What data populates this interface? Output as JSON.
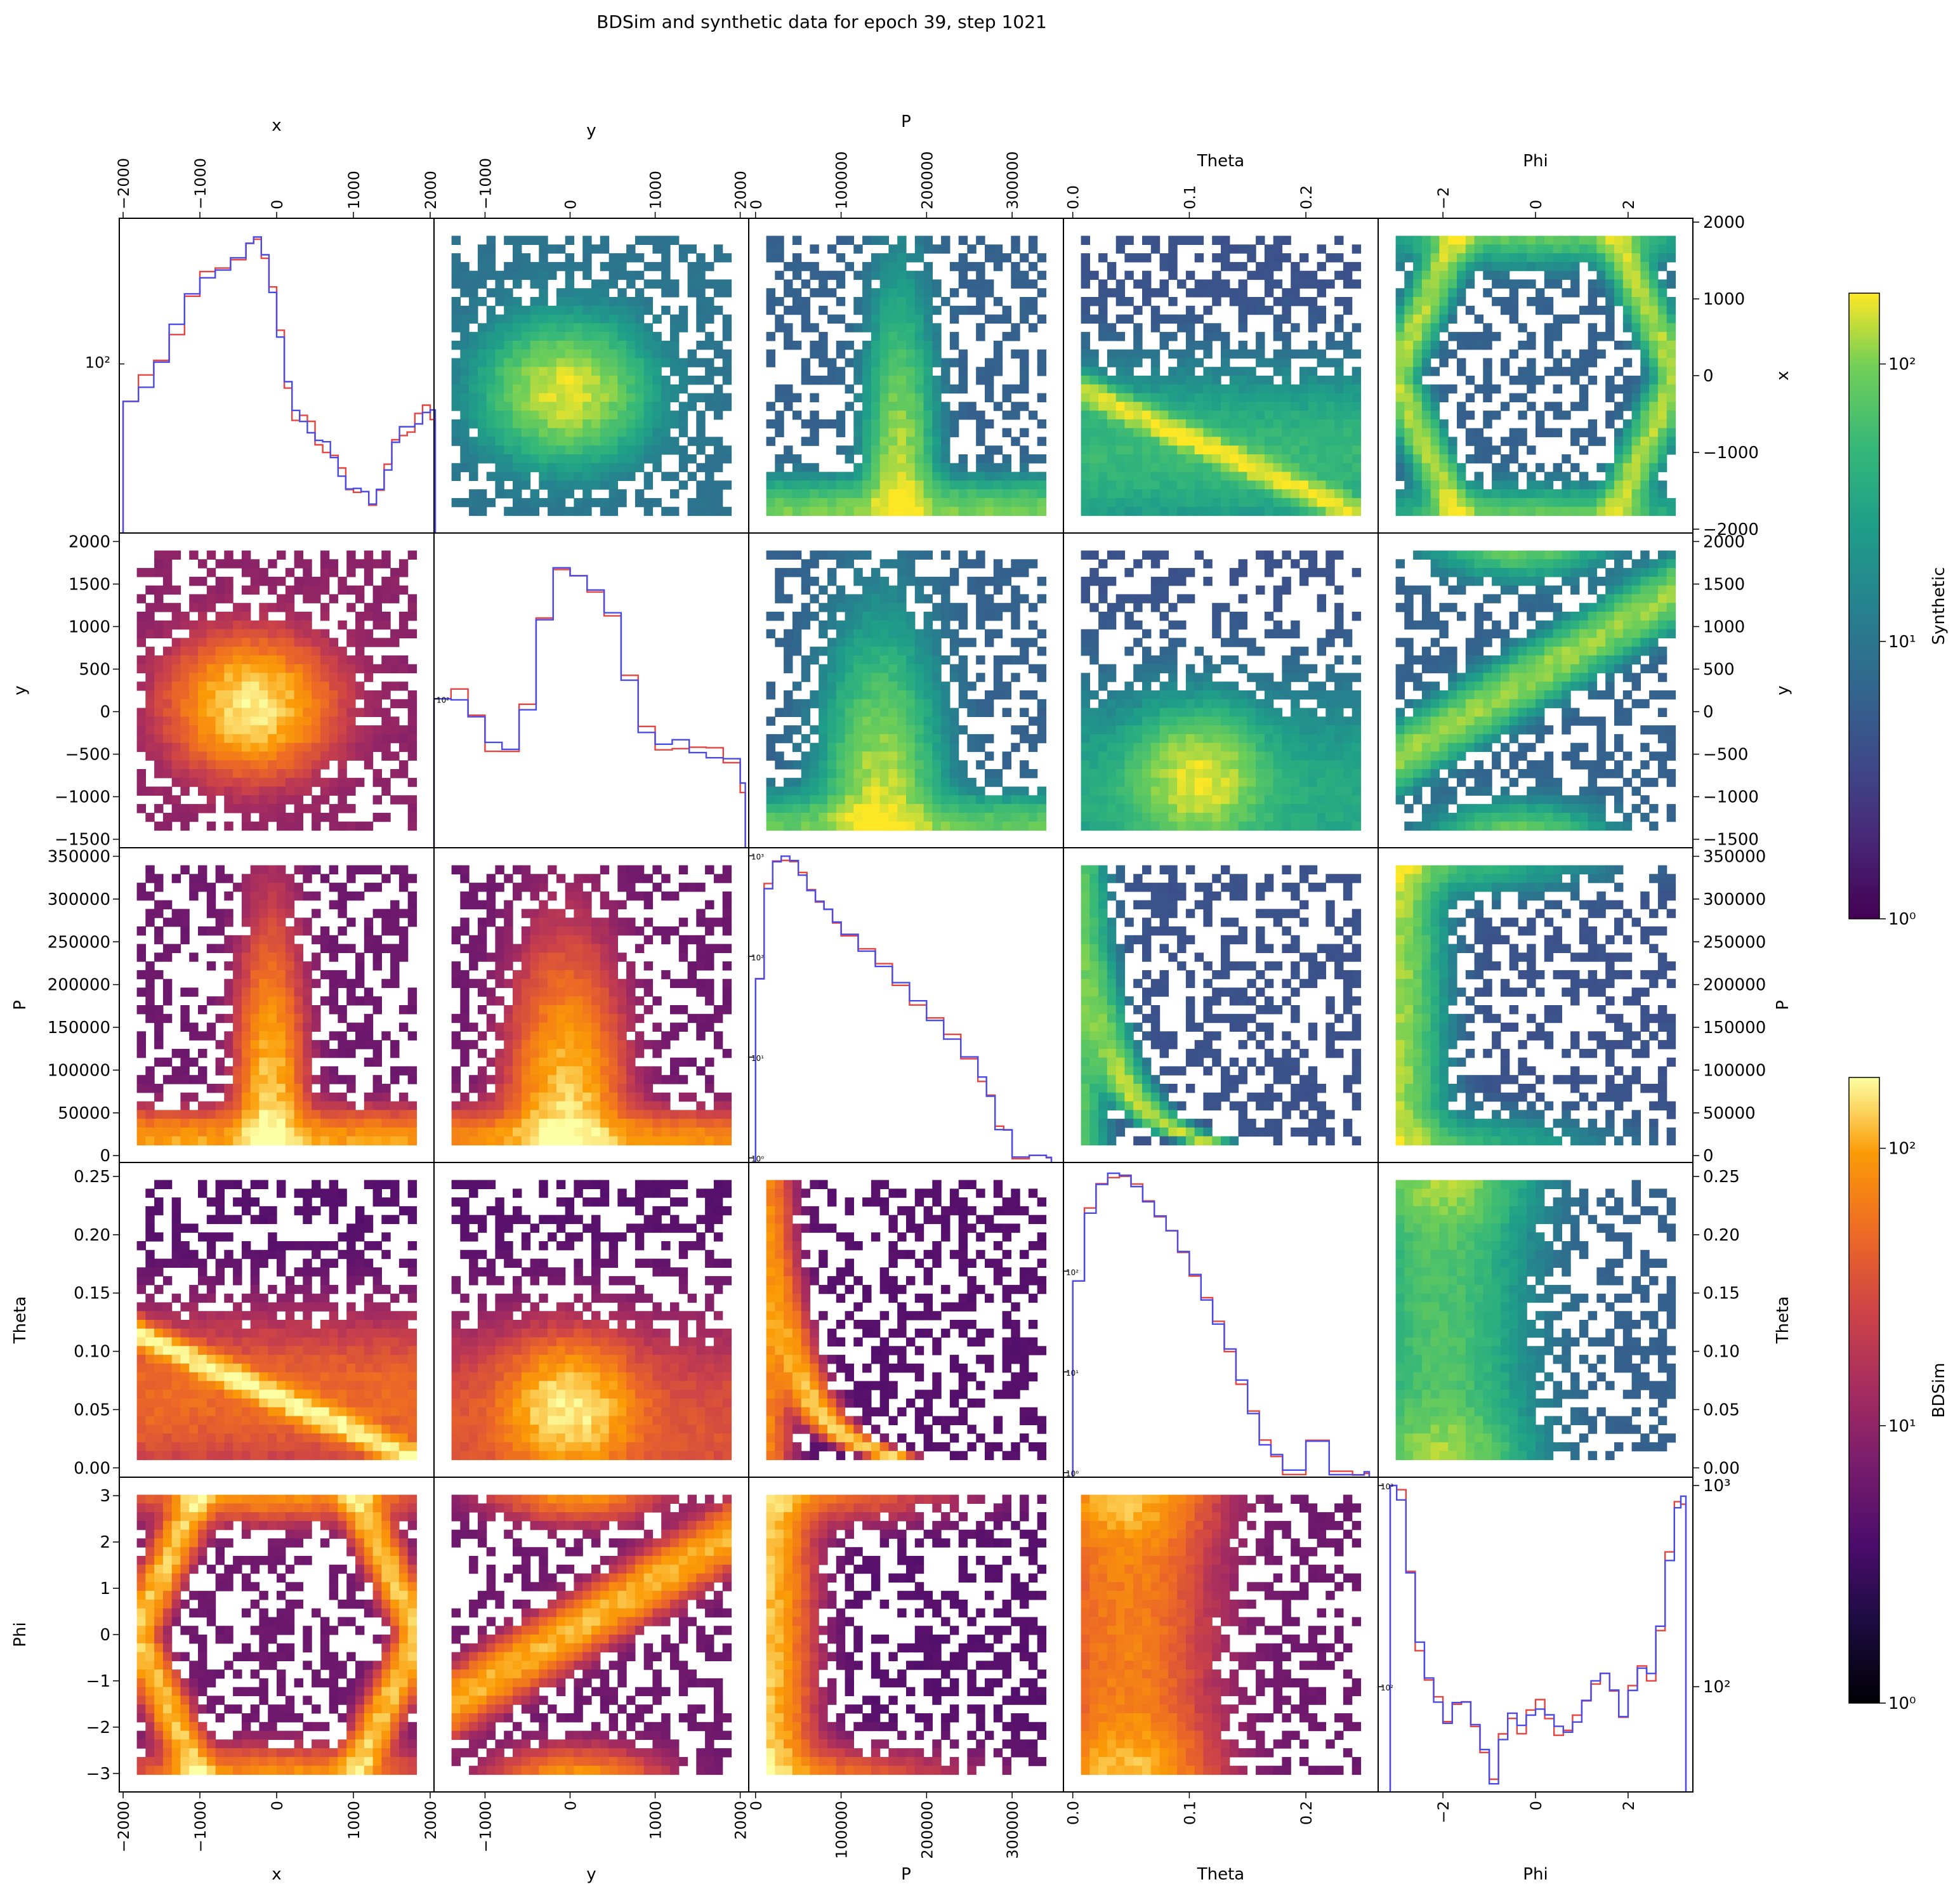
{
  "chart_data": {
    "type": "pairplot",
    "title": "BDSim and synthetic data for epoch 39, step 1021",
    "variables": [
      {
        "name": "x",
        "label": "x",
        "range": [
          -2050,
          2050
        ],
        "ticks": [
          -2000,
          -1000,
          0,
          1000,
          2000
        ],
        "tick_labels": [
          "−2000",
          "−1000",
          "0",
          "1000",
          "2000"
        ]
      },
      {
        "name": "y",
        "label": "y",
        "range": [
          -1600,
          2100
        ],
        "ticks": [
          -1000,
          0,
          1000,
          2000
        ],
        "tick_labels": [
          "−1000",
          "0",
          "1000",
          "2000"
        ],
        "row_ticks": [
          -1500,
          -1000,
          -500,
          0,
          500,
          1000,
          1500,
          2000
        ],
        "row_tick_labels": [
          "−1500",
          "−1000",
          "−500",
          "0",
          "500",
          "1000",
          "1500",
          "2000"
        ]
      },
      {
        "name": "P",
        "label": "P",
        "range": [
          -8000,
          360000
        ],
        "ticks": [
          0,
          100000,
          200000,
          300000
        ],
        "tick_labels": [
          "0",
          "100000",
          "200000",
          "300000"
        ],
        "row_ticks": [
          0,
          50000,
          100000,
          150000,
          200000,
          250000,
          300000,
          350000
        ],
        "row_tick_labels": [
          "0",
          "50000",
          "100000",
          "150000",
          "200000",
          "250000",
          "300000",
          "350000"
        ]
      },
      {
        "name": "Theta",
        "label": "Theta",
        "range": [
          -0.008,
          0.262
        ],
        "ticks": [
          0.0,
          0.1,
          0.2
        ],
        "tick_labels": [
          "0.0",
          "0.1",
          "0.2"
        ],
        "row_ticks": [
          0.0,
          0.05,
          0.1,
          0.15,
          0.2,
          0.25
        ],
        "row_tick_labels": [
          "0.00",
          "0.05",
          "0.10",
          "0.15",
          "0.20",
          "0.25"
        ]
      },
      {
        "name": "Phi",
        "label": "Phi",
        "range": [
          -3.4,
          3.4
        ],
        "ticks": [
          -2,
          0,
          2
        ],
        "tick_labels": [
          "−2",
          "0",
          "2"
        ],
        "row_ticks": [
          -3,
          -2,
          -1,
          0,
          1,
          2,
          3
        ],
        "row_tick_labels": [
          "−3",
          "−2",
          "−1",
          "0",
          "1",
          "2",
          "3"
        ]
      }
    ],
    "layout": "upper triangle: Synthetic (viridis, log color); lower triangle: BDSim (inferno, log color); diagonal: step histograms, log y",
    "diagonal_histograms": {
      "series_colors": {
        "BDSim": "#e8433f",
        "Synthetic": "#4a4ae8"
      },
      "x": {
        "ylim": [
          20,
          400
        ],
        "yticks": [
          100
        ],
        "ytick_labels": [
          "10²"
        ],
        "points": [
          [
            -2000,
            70
          ],
          [
            -1800,
            85
          ],
          [
            -1600,
            105
          ],
          [
            -1400,
            140
          ],
          [
            -1200,
            185
          ],
          [
            -1000,
            230
          ],
          [
            -800,
            260
          ],
          [
            -600,
            280
          ],
          [
            -400,
            300
          ],
          [
            -300,
            320
          ],
          [
            -200,
            290
          ],
          [
            -100,
            210
          ],
          [
            0,
            130
          ],
          [
            100,
            80
          ],
          [
            200,
            62
          ],
          [
            300,
            60
          ],
          [
            400,
            55
          ],
          [
            500,
            48
          ],
          [
            600,
            45
          ],
          [
            700,
            40
          ],
          [
            800,
            36
          ],
          [
            900,
            32
          ],
          [
            1000,
            30
          ],
          [
            1100,
            28
          ],
          [
            1200,
            26
          ],
          [
            1300,
            32
          ],
          [
            1400,
            38
          ],
          [
            1500,
            46
          ],
          [
            1600,
            52
          ],
          [
            1700,
            55
          ],
          [
            1800,
            60
          ],
          [
            1900,
            65
          ],
          [
            2000,
            62
          ]
        ]
      },
      "y": {
        "ylim": [
          20,
          600
        ],
        "yticks": [
          100
        ],
        "ytick_labels": [
          "10²"
        ],
        "points": [
          [
            -1600,
            100
          ],
          [
            -1400,
            105
          ],
          [
            -1200,
            85
          ],
          [
            -1000,
            60
          ],
          [
            -800,
            55
          ],
          [
            -600,
            90
          ],
          [
            -400,
            250
          ],
          [
            -200,
            420
          ],
          [
            0,
            360
          ],
          [
            200,
            310
          ],
          [
            400,
            260
          ],
          [
            600,
            130
          ],
          [
            800,
            70
          ],
          [
            1000,
            58
          ],
          [
            1200,
            62
          ],
          [
            1400,
            58
          ],
          [
            1600,
            56
          ],
          [
            1800,
            52
          ],
          [
            2000,
            38
          ]
        ]
      },
      "P": {
        "ylim": [
          0.9,
          1200
        ],
        "yticks": [
          1,
          10,
          100,
          1000
        ],
        "ytick_labels": [
          "10⁰",
          "10¹",
          "10²",
          "10³"
        ],
        "points": [
          [
            0,
            60
          ],
          [
            10000,
            500
          ],
          [
            20000,
            900
          ],
          [
            30000,
            950
          ],
          [
            40000,
            850
          ],
          [
            50000,
            650
          ],
          [
            60000,
            480
          ],
          [
            70000,
            360
          ],
          [
            80000,
            280
          ],
          [
            90000,
            210
          ],
          [
            100000,
            170
          ],
          [
            120000,
            120
          ],
          [
            140000,
            80
          ],
          [
            160000,
            52
          ],
          [
            180000,
            35
          ],
          [
            200000,
            24
          ],
          [
            220000,
            16
          ],
          [
            240000,
            10
          ],
          [
            260000,
            6
          ],
          [
            270000,
            4
          ],
          [
            280000,
            2
          ],
          [
            290000,
            2
          ],
          [
            300000,
            1
          ],
          [
            320000,
            1
          ],
          [
            340000,
            1
          ]
        ]
      },
      "Theta": {
        "ylim": [
          0.9,
          1200
        ],
        "yticks": [
          1,
          10,
          100
        ],
        "ytick_labels": [
          "10⁰",
          "10¹",
          "10²"
        ],
        "points": [
          [
            0.0,
            80
          ],
          [
            0.01,
            400
          ],
          [
            0.02,
            750
          ],
          [
            0.03,
            900
          ],
          [
            0.04,
            850
          ],
          [
            0.05,
            700
          ],
          [
            0.06,
            520
          ],
          [
            0.07,
            360
          ],
          [
            0.08,
            240
          ],
          [
            0.09,
            150
          ],
          [
            0.1,
            95
          ],
          [
            0.11,
            55
          ],
          [
            0.12,
            30
          ],
          [
            0.13,
            16
          ],
          [
            0.14,
            8
          ],
          [
            0.15,
            4
          ],
          [
            0.16,
            2
          ],
          [
            0.17,
            1.5
          ],
          [
            0.18,
            1
          ],
          [
            0.2,
            2
          ],
          [
            0.22,
            1
          ],
          [
            0.24,
            1
          ],
          [
            0.25,
            1
          ]
        ]
      },
      "Phi": {
        "ylim": [
          30,
          1100
        ],
        "yticks": [
          100,
          1000
        ],
        "ytick_labels": [
          "10²",
          "10³"
        ],
        "points": [
          [
            -3.14,
            1000
          ],
          [
            -3.0,
            900
          ],
          [
            -2.8,
            380
          ],
          [
            -2.6,
            160
          ],
          [
            -2.4,
            105
          ],
          [
            -2.2,
            85
          ],
          [
            -2.0,
            70
          ],
          [
            -1.8,
            85
          ],
          [
            -1.6,
            80
          ],
          [
            -1.4,
            62
          ],
          [
            -1.2,
            50
          ],
          [
            -1.0,
            35
          ],
          [
            -0.8,
            55
          ],
          [
            -0.6,
            70
          ],
          [
            -0.4,
            62
          ],
          [
            -0.2,
            75
          ],
          [
            0.0,
            82
          ],
          [
            0.2,
            72
          ],
          [
            0.4,
            60
          ],
          [
            0.6,
            58
          ],
          [
            0.8,
            70
          ],
          [
            1.0,
            90
          ],
          [
            1.2,
            105
          ],
          [
            1.4,
            110
          ],
          [
            1.6,
            95
          ],
          [
            1.8,
            75
          ],
          [
            2.0,
            100
          ],
          [
            2.2,
            120
          ],
          [
            2.4,
            110
          ],
          [
            2.6,
            200
          ],
          [
            2.8,
            450
          ],
          [
            3.0,
            800
          ],
          [
            3.14,
            850
          ]
        ]
      }
    },
    "colorbars": [
      {
        "label": "Synthetic",
        "cmap": "viridis",
        "scale": "log",
        "range": [
          1,
          180
        ],
        "ticks": [
          1,
          10,
          100
        ],
        "tick_labels": [
          "10⁰",
          "10¹",
          "10²"
        ]
      },
      {
        "label": "BDSim",
        "cmap": "inferno",
        "scale": "log",
        "range": [
          1,
          180
        ],
        "ticks": [
          1,
          10,
          100
        ],
        "tick_labels": [
          "10⁰",
          "10¹",
          "10²"
        ]
      }
    ]
  }
}
